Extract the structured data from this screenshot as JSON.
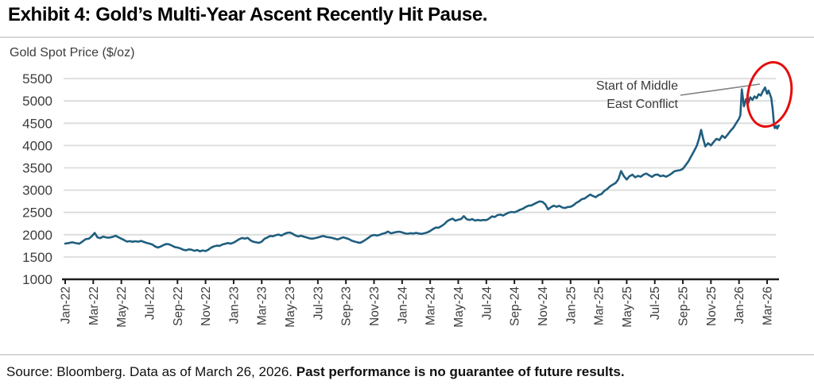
{
  "header": {
    "title": "Exhibit 4: Gold’s Multi-Year Ascent Recently Hit Pause."
  },
  "footer": {
    "source_regular": "Source: Bloomberg. Data as of March 26, 2026. ",
    "source_bold": "Past performance is no guarantee of future results."
  },
  "colors": {
    "line": "#1f5e7f",
    "grid": "#dbdbdb",
    "axis": "#1c1c1c",
    "tick_text": "#3c3c3c",
    "leader": "#808080",
    "circle": "#e50d0d"
  },
  "chart_data": {
    "type": "line",
    "title": "Exhibit 4: Gold’s Multi-Year Ascent Recently Hit Pause.",
    "ylabel": "Gold Spot Price ($/oz)",
    "xlabel": "",
    "ylim": [
      1000,
      5500
    ],
    "grid": "horizontal",
    "legend": "none",
    "y_ticks": [
      1000,
      1500,
      2000,
      2500,
      3000,
      3500,
      4000,
      4500,
      5000,
      5500
    ],
    "x_tick_labels": [
      "Jan-22",
      "Mar-22",
      "May-22",
      "Jul-22",
      "Sep-22",
      "Nov-22",
      "Jan-23",
      "Mar-23",
      "May-23",
      "Jul-23",
      "Sep-23",
      "Nov-23",
      "Jan-24",
      "Mar-24",
      "May-24",
      "Jul-24",
      "Sep-24",
      "Nov-24",
      "Jan-25",
      "Mar-25",
      "May-25",
      "Jul-25",
      "Sep-25",
      "Nov-25",
      "Jan-26",
      "Mar-26"
    ],
    "x_unit": "months_since_Jan_2022",
    "annotation": {
      "text": "Start of Middle\nEast Conflict",
      "points_to": "early-2026 peak"
    },
    "series": [
      {
        "name": "Gold Spot Price ($/oz)",
        "points": [
          [
            0,
            1800
          ],
          [
            0.25,
            1814
          ],
          [
            0.5,
            1829
          ],
          [
            0.75,
            1812
          ],
          [
            1,
            1798
          ],
          [
            1.2,
            1839
          ],
          [
            1.45,
            1898
          ],
          [
            1.7,
            1912
          ],
          [
            1.9,
            1968
          ],
          [
            2.1,
            2039
          ],
          [
            2.3,
            1942
          ],
          [
            2.5,
            1924
          ],
          [
            2.7,
            1957
          ],
          [
            2.9,
            1941
          ],
          [
            3.1,
            1932
          ],
          [
            3.35,
            1949
          ],
          [
            3.6,
            1977
          ],
          [
            3.8,
            1941
          ],
          [
            4,
            1911
          ],
          [
            4.2,
            1879
          ],
          [
            4.4,
            1846
          ],
          [
            4.6,
            1856
          ],
          [
            4.8,
            1841
          ],
          [
            5,
            1854
          ],
          [
            5.2,
            1844
          ],
          [
            5.4,
            1861
          ],
          [
            5.6,
            1838
          ],
          [
            5.8,
            1816
          ],
          [
            6,
            1801
          ],
          [
            6.2,
            1781
          ],
          [
            6.4,
            1739
          ],
          [
            6.6,
            1711
          ],
          [
            6.8,
            1734
          ],
          [
            7,
            1767
          ],
          [
            7.2,
            1791
          ],
          [
            7.4,
            1784
          ],
          [
            7.6,
            1756
          ],
          [
            7.8,
            1724
          ],
          [
            8,
            1711
          ],
          [
            8.2,
            1694
          ],
          [
            8.4,
            1664
          ],
          [
            8.6,
            1649
          ],
          [
            8.8,
            1671
          ],
          [
            9,
            1664
          ],
          [
            9.2,
            1639
          ],
          [
            9.4,
            1656
          ],
          [
            9.6,
            1629
          ],
          [
            9.8,
            1647
          ],
          [
            10,
            1634
          ],
          [
            10.2,
            1664
          ],
          [
            10.4,
            1711
          ],
          [
            10.6,
            1739
          ],
          [
            10.8,
            1754
          ],
          [
            11,
            1749
          ],
          [
            11.2,
            1781
          ],
          [
            11.4,
            1797
          ],
          [
            11.6,
            1814
          ],
          [
            11.8,
            1799
          ],
          [
            12,
            1824
          ],
          [
            12.2,
            1861
          ],
          [
            12.4,
            1901
          ],
          [
            12.6,
            1927
          ],
          [
            12.8,
            1911
          ],
          [
            13,
            1929
          ],
          [
            13.2,
            1874
          ],
          [
            13.4,
            1841
          ],
          [
            13.6,
            1829
          ],
          [
            13.8,
            1817
          ],
          [
            14,
            1844
          ],
          [
            14.2,
            1909
          ],
          [
            14.4,
            1937
          ],
          [
            14.6,
            1971
          ],
          [
            14.8,
            1964
          ],
          [
            15,
            1989
          ],
          [
            15.2,
            2004
          ],
          [
            15.4,
            1981
          ],
          [
            15.6,
            2014
          ],
          [
            15.8,
            2041
          ],
          [
            16,
            2049
          ],
          [
            16.2,
            2021
          ],
          [
            16.4,
            1984
          ],
          [
            16.6,
            1961
          ],
          [
            16.8,
            1977
          ],
          [
            17,
            1957
          ],
          [
            17.2,
            1937
          ],
          [
            17.4,
            1919
          ],
          [
            17.6,
            1911
          ],
          [
            17.8,
            1924
          ],
          [
            18,
            1937
          ],
          [
            18.2,
            1957
          ],
          [
            18.4,
            1971
          ],
          [
            18.6,
            1951
          ],
          [
            18.8,
            1941
          ],
          [
            19,
            1931
          ],
          [
            19.2,
            1911
          ],
          [
            19.4,
            1894
          ],
          [
            19.6,
            1917
          ],
          [
            19.8,
            1941
          ],
          [
            20,
            1924
          ],
          [
            20.2,
            1904
          ],
          [
            20.4,
            1867
          ],
          [
            20.6,
            1847
          ],
          [
            20.8,
            1831
          ],
          [
            21,
            1817
          ],
          [
            21.2,
            1847
          ],
          [
            21.4,
            1887
          ],
          [
            21.6,
            1931
          ],
          [
            21.8,
            1977
          ],
          [
            22,
            1994
          ],
          [
            22.2,
            1981
          ],
          [
            22.4,
            1997
          ],
          [
            22.6,
            2021
          ],
          [
            22.8,
            2037
          ],
          [
            23,
            2071
          ],
          [
            23.2,
            2031
          ],
          [
            23.4,
            2047
          ],
          [
            23.6,
            2061
          ],
          [
            23.8,
            2067
          ],
          [
            24,
            2051
          ],
          [
            24.2,
            2031
          ],
          [
            24.4,
            2021
          ],
          [
            24.6,
            2034
          ],
          [
            24.8,
            2027
          ],
          [
            25,
            2041
          ],
          [
            25.2,
            2027
          ],
          [
            25.4,
            2017
          ],
          [
            25.6,
            2034
          ],
          [
            25.8,
            2051
          ],
          [
            26,
            2084
          ],
          [
            26.2,
            2127
          ],
          [
            26.4,
            2161
          ],
          [
            26.6,
            2157
          ],
          [
            26.8,
            2194
          ],
          [
            27,
            2234
          ],
          [
            27.2,
            2301
          ],
          [
            27.4,
            2337
          ],
          [
            27.6,
            2361
          ],
          [
            27.8,
            2314
          ],
          [
            28,
            2337
          ],
          [
            28.2,
            2351
          ],
          [
            28.4,
            2417
          ],
          [
            28.6,
            2347
          ],
          [
            28.8,
            2331
          ],
          [
            29,
            2351
          ],
          [
            29.2,
            2317
          ],
          [
            29.4,
            2331
          ],
          [
            29.6,
            2321
          ],
          [
            29.8,
            2331
          ],
          [
            30,
            2327
          ],
          [
            30.2,
            2361
          ],
          [
            30.4,
            2411
          ],
          [
            30.6,
            2397
          ],
          [
            30.8,
            2441
          ],
          [
            31,
            2451
          ],
          [
            31.2,
            2431
          ],
          [
            31.4,
            2467
          ],
          [
            31.6,
            2497
          ],
          [
            31.8,
            2511
          ],
          [
            32,
            2501
          ],
          [
            32.2,
            2527
          ],
          [
            32.4,
            2561
          ],
          [
            32.6,
            2581
          ],
          [
            32.8,
            2621
          ],
          [
            33,
            2651
          ],
          [
            33.2,
            2657
          ],
          [
            33.4,
            2687
          ],
          [
            33.6,
            2721
          ],
          [
            33.8,
            2747
          ],
          [
            34,
            2737
          ],
          [
            34.2,
            2681
          ],
          [
            34.4,
            2567
          ],
          [
            34.6,
            2617
          ],
          [
            34.8,
            2651
          ],
          [
            35,
            2627
          ],
          [
            35.2,
            2647
          ],
          [
            35.4,
            2611
          ],
          [
            35.6,
            2597
          ],
          [
            35.8,
            2621
          ],
          [
            36,
            2627
          ],
          [
            36.2,
            2661
          ],
          [
            36.4,
            2711
          ],
          [
            36.6,
            2747
          ],
          [
            36.8,
            2797
          ],
          [
            37,
            2811
          ],
          [
            37.2,
            2857
          ],
          [
            37.4,
            2901
          ],
          [
            37.6,
            2867
          ],
          [
            37.8,
            2841
          ],
          [
            38,
            2891
          ],
          [
            38.2,
            2911
          ],
          [
            38.4,
            2981
          ],
          [
            38.6,
            3021
          ],
          [
            38.8,
            3081
          ],
          [
            39,
            3121
          ],
          [
            39.2,
            3157
          ],
          [
            39.4,
            3241
          ],
          [
            39.6,
            3427
          ],
          [
            39.8,
            3311
          ],
          [
            40,
            3237
          ],
          [
            40.2,
            3311
          ],
          [
            40.4,
            3347
          ],
          [
            40.6,
            3287
          ],
          [
            40.8,
            3321
          ],
          [
            41,
            3301
          ],
          [
            41.2,
            3347
          ],
          [
            41.4,
            3371
          ],
          [
            41.6,
            3331
          ],
          [
            41.8,
            3297
          ],
          [
            42,
            3341
          ],
          [
            42.2,
            3351
          ],
          [
            42.4,
            3311
          ],
          [
            42.6,
            3327
          ],
          [
            42.8,
            3301
          ],
          [
            43,
            3331
          ],
          [
            43.2,
            3371
          ],
          [
            43.4,
            3421
          ],
          [
            43.6,
            3437
          ],
          [
            43.8,
            3447
          ],
          [
            44,
            3477
          ],
          [
            44.2,
            3561
          ],
          [
            44.4,
            3647
          ],
          [
            44.6,
            3761
          ],
          [
            44.8,
            3877
          ],
          [
            45,
            4001
          ],
          [
            45.15,
            4151
          ],
          [
            45.3,
            4351
          ],
          [
            45.45,
            4151
          ],
          [
            45.6,
            3981
          ],
          [
            45.8,
            4051
          ],
          [
            46,
            4001
          ],
          [
            46.2,
            4081
          ],
          [
            46.4,
            4151
          ],
          [
            46.6,
            4121
          ],
          [
            46.8,
            4221
          ],
          [
            47,
            4171
          ],
          [
            47.2,
            4251
          ],
          [
            47.4,
            4331
          ],
          [
            47.6,
            4401
          ],
          [
            47.8,
            4501
          ],
          [
            48,
            4601
          ],
          [
            48.1,
            4681
          ],
          [
            48.2,
            5261
          ],
          [
            48.35,
            4881
          ],
          [
            48.5,
            5041
          ],
          [
            48.65,
            4951
          ],
          [
            48.8,
            5081
          ],
          [
            48.95,
            5021
          ],
          [
            49.1,
            5101
          ],
          [
            49.25,
            5061
          ],
          [
            49.4,
            5151
          ],
          [
            49.55,
            5121
          ],
          [
            49.7,
            5221
          ],
          [
            49.85,
            5301
          ],
          [
            50,
            5161
          ],
          [
            50.1,
            5231
          ],
          [
            50.2,
            5151
          ],
          [
            50.3,
            5061
          ],
          [
            50.4,
            4801
          ],
          [
            50.5,
            4451
          ],
          [
            50.55,
            4391
          ],
          [
            50.65,
            4437
          ],
          [
            50.72,
            4381
          ],
          [
            50.83,
            4451
          ]
        ]
      }
    ]
  }
}
